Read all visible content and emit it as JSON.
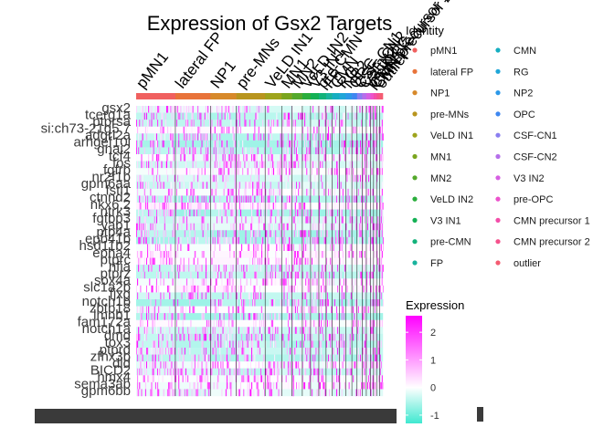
{
  "chart_data": {
    "type": "heatmap",
    "title": "Expression of Gsx2 Targets",
    "genes": [
      "gsx2",
      "tcerg1a",
      "ptprsa",
      "si:ch73-21g5.7",
      "adgrl2a",
      "arhgef10l",
      "gnai2",
      "tcf4",
      "fos",
      "fgfrb",
      "nr2f1b",
      "gpm6aa",
      "fstl1",
      "ctnnd2",
      "nkx6.2",
      "ntrk3",
      "fgfbp3",
      "yap1",
      "ptp4a",
      "epb41b",
      "hsd11b2",
      "epha4",
      "ptprc",
      "nfia",
      "ptprz",
      "sox4a",
      "slc1a2b",
      "fjxg",
      "notch1b",
      "zbtb18",
      "lmnb1",
      "fam172a",
      "notch1a",
      "dmd",
      "tox3",
      "ptprd",
      "zfhx3b",
      "dld",
      "BICD2",
      "hmx4",
      "sema3ab",
      "gpm6bb"
    ],
    "clusters": [
      {
        "name": "pMN1",
        "color": "#F0605F",
        "width": 38
      },
      {
        "name": "lateral FP",
        "color": "#E8733A",
        "width": 34
      },
      {
        "name": "NP1",
        "color": "#D7892A",
        "width": 25
      },
      {
        "name": "pre-MNs",
        "color": "#B8951E",
        "width": 28
      },
      {
        "name": "VeLD IN1",
        "color": "#9EA41C",
        "width": 16
      },
      {
        "name": "MN1",
        "color": "#7AA51E",
        "width": 10
      },
      {
        "name": "MN2",
        "color": "#54A92C",
        "width": 10
      },
      {
        "name": "VeLD IN2",
        "color": "#2AAE3C",
        "width": 8
      },
      {
        "name": "V3 IN1",
        "color": "#13B054",
        "width": 8
      },
      {
        "name": "pre-CMN",
        "color": "#12B27A",
        "width": 7
      },
      {
        "name": "FP",
        "color": "#19B39D",
        "width": 6
      },
      {
        "name": "CMN",
        "color": "#15AEC1",
        "width": 7
      },
      {
        "name": "RG",
        "color": "#1FA6D8",
        "width": 6
      },
      {
        "name": "NP2",
        "color": "#2C98E8",
        "width": 6
      },
      {
        "name": "OPC",
        "color": "#3E87F0",
        "width": 5
      },
      {
        "name": "CSF-CN1",
        "color": "#8A7EF0",
        "width": 5
      },
      {
        "name": "CSF-CN2",
        "color": "#B56FEA",
        "width": 4
      },
      {
        "name": "V3 IN2",
        "color": "#D65FE2",
        "width": 4
      },
      {
        "name": "pre-OPC",
        "color": "#EC52CC",
        "width": 3
      },
      {
        "name": "CMN precursor 1",
        "color": "#F34DA9",
        "width": 3
      },
      {
        "name": "CMN precursor 2",
        "color": "#F5518C",
        "width": 3
      },
      {
        "name": "outlier",
        "color": "#F45C72",
        "width": 3
      }
    ],
    "legend": {
      "identity_title": "Identity",
      "expression_title": "Expression",
      "scale_ticks": [
        2,
        1,
        0,
        -1
      ],
      "scale_range": [
        -1.3,
        2.6
      ],
      "colors": {
        "low": "#40E8D0",
        "mid": "#FFFFFF",
        "high": "#FF00FF"
      }
    }
  }
}
